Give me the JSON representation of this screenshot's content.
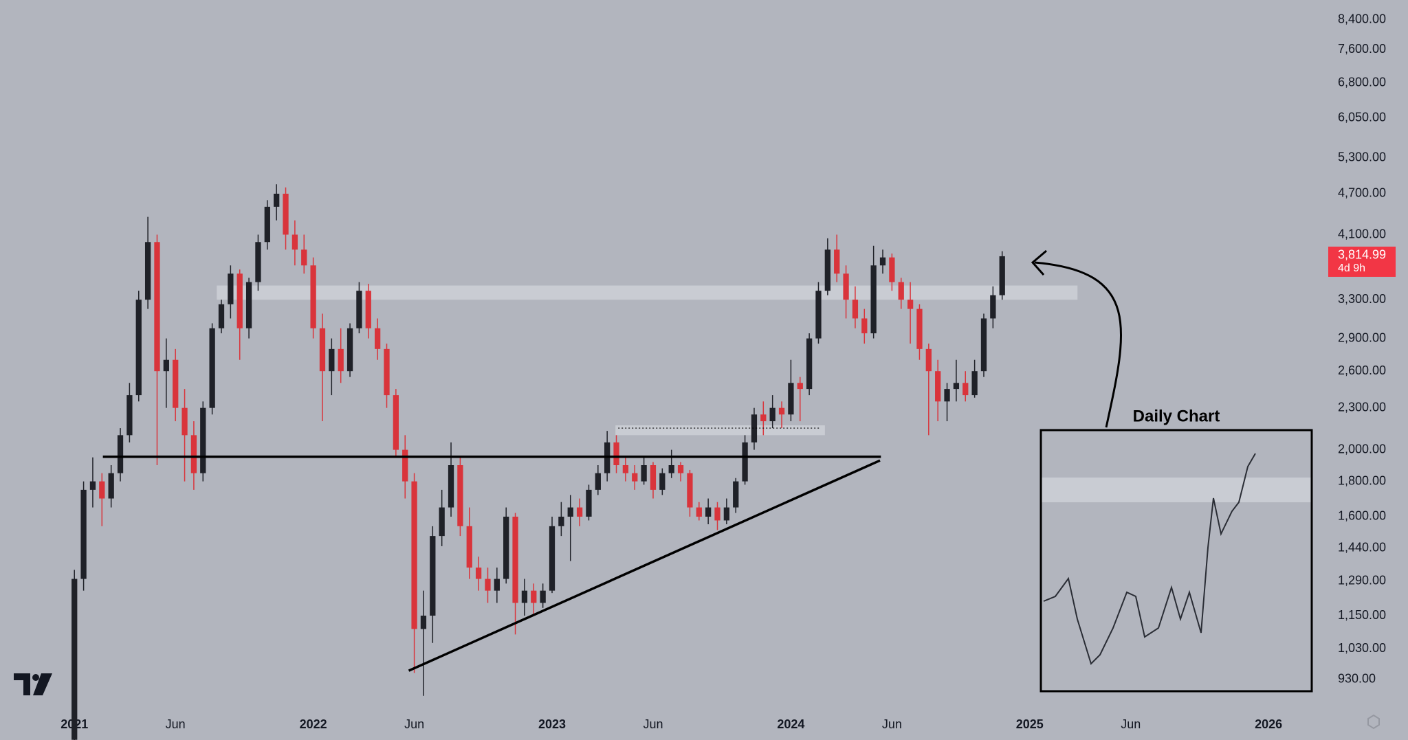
{
  "chart_data": {
    "type": "candlestick",
    "log_scale": true,
    "up_color": "#1f2128",
    "down_color": "#d9343b",
    "xlim": [
      -8.1,
      135.6
    ],
    "xticks": [
      {
        "value": 0,
        "label": "2021"
      },
      {
        "value": 11,
        "label": "Jun"
      },
      {
        "value": 26,
        "label": "2022"
      },
      {
        "value": 37,
        "label": "Jun"
      },
      {
        "value": 52,
        "label": "2023"
      },
      {
        "value": 63,
        "label": "Jun"
      },
      {
        "value": 78,
        "label": "2024"
      },
      {
        "value": 89,
        "label": "Jun"
      },
      {
        "value": 104,
        "label": "2025"
      },
      {
        "value": 115,
        "label": "Jun"
      },
      {
        "value": 130,
        "label": "2026"
      }
    ],
    "ylim": [
      842,
      8970
    ],
    "yticks": [
      {
        "value": 930,
        "label": "930.00"
      },
      {
        "value": 1030,
        "label": "1,030.00"
      },
      {
        "value": 1150,
        "label": "1,150.00"
      },
      {
        "value": 1290,
        "label": "1,290.00"
      },
      {
        "value": 1440,
        "label": "1,440.00"
      },
      {
        "value": 1600,
        "label": "1,600.00"
      },
      {
        "value": 1800,
        "label": "1,800.00"
      },
      {
        "value": 2000,
        "label": "2,000.00"
      },
      {
        "value": 2300,
        "label": "2,300.00"
      },
      {
        "value": 2600,
        "label": "2,600.00"
      },
      {
        "value": 2900,
        "label": "2,900.00"
      },
      {
        "value": 3300,
        "label": "3,300.00"
      },
      {
        "value": 4100,
        "label": "4,100.00"
      },
      {
        "value": 4700,
        "label": "4,700.00"
      },
      {
        "value": 5300,
        "label": "5,300.00"
      },
      {
        "value": 6050,
        "label": "6,050.00"
      },
      {
        "value": 6800,
        "label": "6,800.00"
      },
      {
        "value": 7600,
        "label": "7,600.00"
      },
      {
        "value": 8400,
        "label": "8,400.00"
      }
    ],
    "last_price": {
      "value": 3814.99,
      "label": "3,814.99",
      "color": "#f23645"
    },
    "countdown": "4d 9h",
    "candles": [
      [
        760,
        1340,
        740,
        1300
      ],
      [
        1300,
        1800,
        1250,
        1750
      ],
      [
        1750,
        1950,
        1650,
        1800
      ],
      [
        1800,
        1850,
        1550,
        1700
      ],
      [
        1700,
        1900,
        1650,
        1850
      ],
      [
        1850,
        2150,
        1800,
        2100
      ],
      [
        2100,
        2500,
        2050,
        2400
      ],
      [
        2400,
        3400,
        2350,
        3300
      ],
      [
        3300,
        4350,
        3200,
        4000
      ],
      [
        4000,
        4100,
        1900,
        2600
      ],
      [
        2600,
        2900,
        2300,
        2700
      ],
      [
        2700,
        2800,
        2200,
        2300
      ],
      [
        2300,
        2450,
        1800,
        2100
      ],
      [
        2100,
        2200,
        1750,
        1850
      ],
      [
        1850,
        2350,
        1800,
        2300
      ],
      [
        2300,
        3050,
        2250,
        3000
      ],
      [
        3000,
        3300,
        2950,
        3250
      ],
      [
        3250,
        3700,
        3100,
        3600
      ],
      [
        3600,
        3650,
        2700,
        3000
      ],
      [
        3000,
        3550,
        2900,
        3500
      ],
      [
        3500,
        4100,
        3400,
        4000
      ],
      [
        4000,
        4600,
        3900,
        4500
      ],
      [
        4500,
        4850,
        4300,
        4700
      ],
      [
        4700,
        4800,
        3900,
        4100
      ],
      [
        4100,
        4300,
        3700,
        3900
      ],
      [
        3900,
        4100,
        3600,
        3700
      ],
      [
        3700,
        3800,
        2900,
        3000
      ],
      [
        3000,
        3150,
        2200,
        2600
      ],
      [
        2600,
        2900,
        2400,
        2800
      ],
      [
        2800,
        3000,
        2500,
        2600
      ],
      [
        2600,
        3050,
        2550,
        3000
      ],
      [
        3000,
        3500,
        2950,
        3400
      ],
      [
        3400,
        3480,
        2900,
        3000
      ],
      [
        3000,
        3100,
        2700,
        2800
      ],
      [
        2800,
        2850,
        2300,
        2400
      ],
      [
        2400,
        2450,
        1950,
        2000
      ],
      [
        2000,
        2100,
        1700,
        1800
      ],
      [
        1800,
        1850,
        950,
        1100
      ],
      [
        1100,
        1250,
        880,
        1150
      ],
      [
        1150,
        1550,
        1050,
        1500
      ],
      [
        1500,
        1750,
        1450,
        1650
      ],
      [
        1650,
        2050,
        1600,
        1900
      ],
      [
        1900,
        1950,
        1500,
        1550
      ],
      [
        1550,
        1650,
        1300,
        1350
      ],
      [
        1350,
        1400,
        1250,
        1300
      ],
      [
        1300,
        1350,
        1200,
        1250
      ],
      [
        1250,
        1350,
        1200,
        1300
      ],
      [
        1300,
        1650,
        1280,
        1600
      ],
      [
        1600,
        1620,
        1080,
        1200
      ],
      [
        1200,
        1300,
        1150,
        1250
      ],
      [
        1250,
        1280,
        1150,
        1200
      ],
      [
        1200,
        1280,
        1180,
        1250
      ],
      [
        1250,
        1600,
        1240,
        1550
      ],
      [
        1550,
        1680,
        1500,
        1600
      ],
      [
        1600,
        1720,
        1380,
        1650
      ],
      [
        1650,
        1700,
        1550,
        1600
      ],
      [
        1600,
        1780,
        1580,
        1750
      ],
      [
        1750,
        1900,
        1720,
        1850
      ],
      [
        1850,
        2130,
        1800,
        2050
      ],
      [
        2050,
        2100,
        1850,
        1900
      ],
      [
        1900,
        1950,
        1800,
        1850
      ],
      [
        1850,
        1900,
        1750,
        1800
      ],
      [
        1800,
        1950,
        1780,
        1900
      ],
      [
        1900,
        1920,
        1700,
        1750
      ],
      [
        1750,
        1880,
        1720,
        1850
      ],
      [
        1850,
        2000,
        1820,
        1900
      ],
      [
        1900,
        1920,
        1800,
        1850
      ],
      [
        1850,
        1870,
        1600,
        1650
      ],
      [
        1650,
        1680,
        1580,
        1600
      ],
      [
        1600,
        1700,
        1560,
        1650
      ],
      [
        1650,
        1680,
        1530,
        1580
      ],
      [
        1580,
        1700,
        1560,
        1650
      ],
      [
        1650,
        1820,
        1620,
        1800
      ],
      [
        1800,
        2100,
        1780,
        2050
      ],
      [
        2050,
        2300,
        2000,
        2250
      ],
      [
        2250,
        2350,
        2100,
        2200
      ],
      [
        2200,
        2400,
        2150,
        2300
      ],
      [
        2300,
        2350,
        2150,
        2250
      ],
      [
        2250,
        2700,
        2200,
        2500
      ],
      [
        2500,
        2550,
        2200,
        2450
      ],
      [
        2450,
        2950,
        2400,
        2900
      ],
      [
        2900,
        3500,
        2850,
        3400
      ],
      [
        3400,
        4050,
        3350,
        3900
      ],
      [
        3900,
        4100,
        3500,
        3600
      ],
      [
        3600,
        3700,
        3100,
        3300
      ],
      [
        3300,
        3450,
        3000,
        3100
      ],
      [
        3100,
        3200,
        2850,
        2950
      ],
      [
        2950,
        3950,
        2900,
        3700
      ],
      [
        3700,
        3900,
        3600,
        3800
      ],
      [
        3800,
        3850,
        3400,
        3500
      ],
      [
        3500,
        3550,
        3200,
        3300
      ],
      [
        3300,
        3500,
        2850,
        3200
      ],
      [
        3200,
        3250,
        2700,
        2800
      ],
      [
        2800,
        2850,
        2100,
        2600
      ],
      [
        2600,
        2700,
        2200,
        2350
      ],
      [
        2350,
        2500,
        2200,
        2450
      ],
      [
        2450,
        2700,
        2350,
        2500
      ],
      [
        2500,
        2600,
        2350,
        2400
      ],
      [
        2400,
        2700,
        2380,
        2600
      ],
      [
        2600,
        3150,
        2550,
        3100
      ],
      [
        3100,
        3450,
        3000,
        3350
      ],
      [
        3350,
        3880,
        3300,
        3814.99
      ]
    ],
    "zones": [
      {
        "x": [
          15.5,
          109.2
        ],
        "y": [
          3300,
          3460
        ],
        "color": "#c9ccd3"
      },
      {
        "x": [
          58.9,
          81.7
        ],
        "y": [
          2100,
          2170
        ],
        "color": "#c9ccd3"
      }
    ],
    "lines": [
      {
        "x": [
          3.1,
          87.8
        ],
        "y": [
          1954,
          1954
        ],
        "color": "#000000",
        "dash": false
      },
      {
        "x": [
          36.4,
          87.7
        ],
        "y": [
          957,
          1930
        ],
        "color": "#000000",
        "dash": false
      },
      {
        "x": [
          59.2,
          81.2
        ],
        "y": [
          2150,
          2150
        ],
        "color": "#000000",
        "dash": true
      }
    ],
    "inset_title": "Daily Chart"
  }
}
